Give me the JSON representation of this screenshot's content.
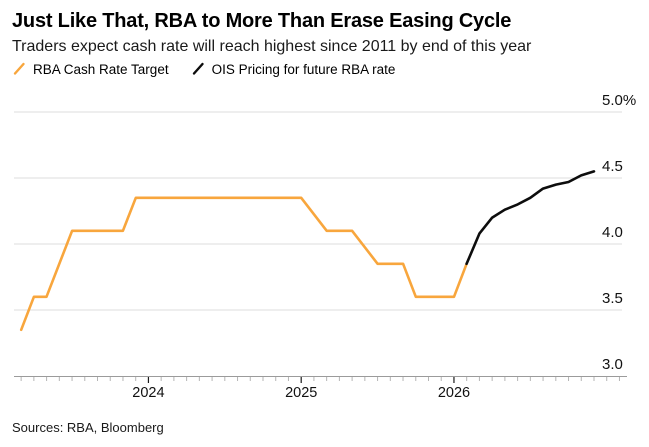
{
  "header": {
    "title": "Just Like That, RBA to More Than Erase Easing Cycle",
    "subtitle": "Traders expect cash rate will reach highest since 2011 by end of this year"
  },
  "legend": {
    "items": [
      {
        "label": "RBA Cash Rate Target",
        "color": "#F8A63D",
        "marker": "slash-icon"
      },
      {
        "label": "OIS Pricing for future RBA rate",
        "color": "#0d0d0d",
        "marker": "slash-icon"
      }
    ]
  },
  "footer": {
    "sources": "Sources: RBA, Bloomberg"
  },
  "colors": {
    "background": "#ffffff",
    "grid": "#dcdcdc",
    "axis_line": "#9b9b9b",
    "minor_tick": "#b5b5b5",
    "major_tick": "#1a1a1a",
    "axis_text": "#111111",
    "orange_series": "#F8A63D",
    "black_series": "#0d0d0d"
  },
  "chart_data": {
    "type": "line",
    "title": "Just Like That, RBA to More Than Erase Easing Cycle",
    "subtitle": "Traders expect cash rate will reach highest since 2011 by end of this year",
    "xlabel": "",
    "ylabel": "",
    "y_unit": "%",
    "ylim": [
      3.0,
      5.0
    ],
    "xlim": [
      2023.12,
      2027.1
    ],
    "grid": "horizontal",
    "legend_position": "top-left",
    "yticks": [
      {
        "value": 3.0,
        "label": "3.0"
      },
      {
        "value": 3.5,
        "label": "3.5"
      },
      {
        "value": 4.0,
        "label": "4.0"
      },
      {
        "value": 4.5,
        "label": "4.5"
      },
      {
        "value": 5.0,
        "label": "5.0%"
      }
    ],
    "x_major_ticks": [
      {
        "value": 2024,
        "label": "2024"
      },
      {
        "value": 2025,
        "label": "2025"
      },
      {
        "value": 2026,
        "label": "2026"
      }
    ],
    "x_minor_tick_interval_months": 1,
    "series": [
      {
        "name": "RBA Cash Rate Target",
        "color": "#F8A63D",
        "points": [
          [
            2023.167,
            3.35
          ],
          [
            2023.25,
            3.6
          ],
          [
            2023.333,
            3.6
          ],
          [
            2023.5,
            4.1
          ],
          [
            2023.833,
            4.1
          ],
          [
            2023.917,
            4.35
          ],
          [
            2025.0,
            4.35
          ],
          [
            2025.167,
            4.1
          ],
          [
            2025.333,
            4.1
          ],
          [
            2025.5,
            3.85
          ],
          [
            2025.667,
            3.85
          ],
          [
            2025.75,
            3.6
          ],
          [
            2026.0,
            3.6
          ],
          [
            2026.083,
            3.85
          ]
        ]
      },
      {
        "name": "OIS Pricing for future RBA rate",
        "color": "#0d0d0d",
        "points": [
          [
            2026.083,
            3.85
          ],
          [
            2026.167,
            4.08
          ],
          [
            2026.25,
            4.2
          ],
          [
            2026.333,
            4.26
          ],
          [
            2026.417,
            4.3
          ],
          [
            2026.5,
            4.35
          ],
          [
            2026.583,
            4.42
          ],
          [
            2026.667,
            4.45
          ],
          [
            2026.75,
            4.47
          ],
          [
            2026.833,
            4.52
          ],
          [
            2026.917,
            4.55
          ]
        ]
      }
    ]
  }
}
